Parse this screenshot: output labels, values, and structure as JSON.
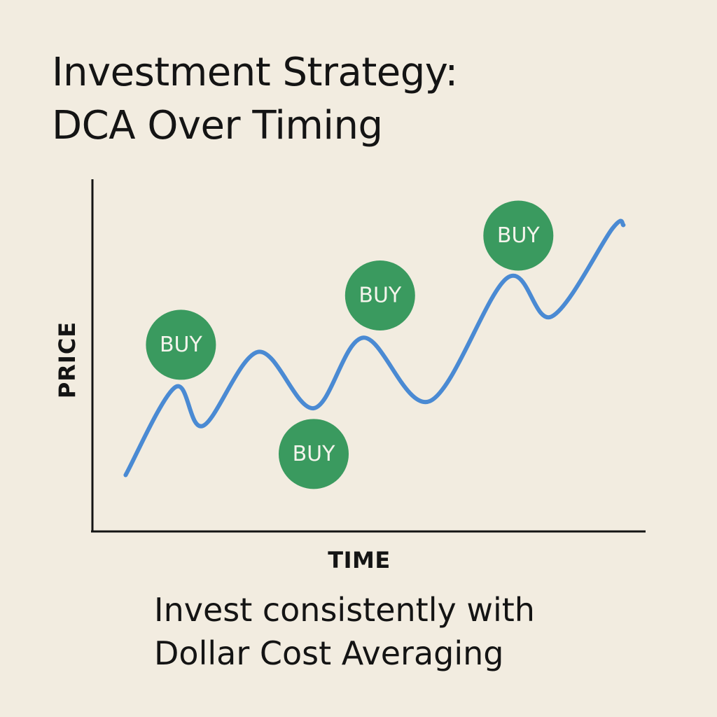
{
  "title_lines": [
    "Investment Strategy:",
    "DCA Over Timing"
  ],
  "caption_lines": [
    "Invest consistently with",
    "Dollar Cost Averaging"
  ],
  "colors": {
    "background": "#f2ece0",
    "text": "#141414",
    "line": "#4a8ad3",
    "marker": "#3a9a5f",
    "marker_text": "#f4f4ec",
    "axis": "#141414"
  },
  "chart_data": {
    "type": "line",
    "title": "Investment Strategy: DCA Over Timing",
    "xlabel": "TIME",
    "ylabel": "PRICE",
    "ticks": false,
    "grid": false,
    "xlim": [
      0,
      100
    ],
    "ylim": [
      0,
      100
    ],
    "series": [
      {
        "x": [
          6,
          15,
          20,
          30,
          40,
          49,
          61,
          75,
          83,
          94,
          96
        ],
        "y": [
          16,
          41,
          30,
          51,
          35,
          55,
          37,
          72,
          61,
          86,
          87
        ]
      }
    ],
    "annotations": [
      {
        "text": "BUY",
        "x": 16,
        "y": 53
      },
      {
        "text": "BUY",
        "x": 40,
        "y": 22
      },
      {
        "text": "BUY",
        "x": 52,
        "y": 67
      },
      {
        "text": "BUY",
        "x": 77,
        "y": 84
      }
    ]
  }
}
